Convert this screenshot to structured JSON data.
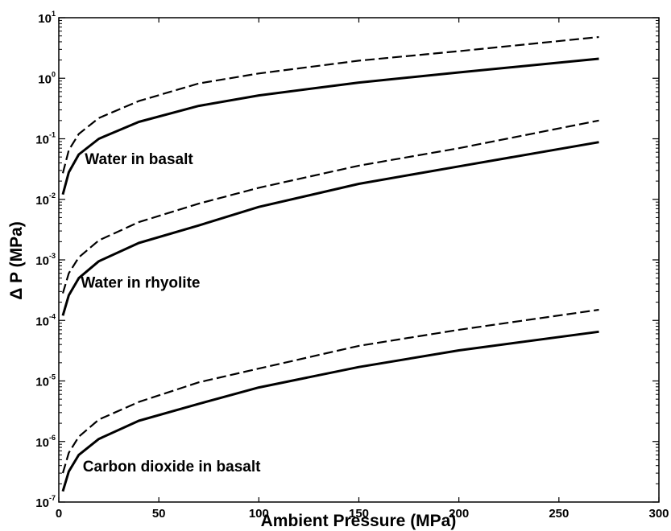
{
  "chart_data": {
    "type": "line",
    "xlabel": "Ambient Pressure  (MPa)",
    "ylabel": "Δ P (MPa)",
    "xlim": [
      0,
      300
    ],
    "ylim": [
      1e-07,
      10
    ],
    "yscale": "log",
    "grid": false,
    "x_ticks": [
      0,
      50,
      100,
      150,
      200,
      250,
      300
    ],
    "y_ticks": [
      {
        "value": 1e-07,
        "base": "10",
        "exp": "-7"
      },
      {
        "value": 1e-06,
        "base": "10",
        "exp": "-6"
      },
      {
        "value": 1e-05,
        "base": "10",
        "exp": "-5"
      },
      {
        "value": 0.0001,
        "base": "10",
        "exp": "-4"
      },
      {
        "value": 0.001,
        "base": "10",
        "exp": "-3"
      },
      {
        "value": 0.01,
        "base": "10",
        "exp": "-2"
      },
      {
        "value": 0.1,
        "base": "10",
        "exp": "-1"
      },
      {
        "value": 1,
        "base": "10",
        "exp": "0"
      },
      {
        "value": 10,
        "base": "10",
        "exp": "1"
      }
    ],
    "series": [
      {
        "style": "dashed",
        "x": [
          2,
          5,
          10,
          20,
          40,
          70,
          100,
          150,
          200,
          270
        ],
        "y": [
          0.027,
          0.065,
          0.12,
          0.22,
          0.42,
          0.82,
          1.2,
          1.95,
          2.8,
          4.8
        ]
      },
      {
        "style": "solid",
        "x": [
          2,
          5,
          10,
          20,
          40,
          70,
          100,
          150,
          200,
          270
        ],
        "y": [
          0.012,
          0.028,
          0.055,
          0.1,
          0.19,
          0.35,
          0.52,
          0.85,
          1.25,
          2.1
        ]
      },
      {
        "style": "dashed",
        "x": [
          2,
          5,
          10,
          20,
          40,
          70,
          100,
          150,
          200,
          270
        ],
        "y": [
          0.00028,
          0.0006,
          0.0011,
          0.0021,
          0.0042,
          0.0085,
          0.0155,
          0.036,
          0.07,
          0.2
        ]
      },
      {
        "style": "solid",
        "x": [
          2,
          5,
          10,
          20,
          40,
          70,
          100,
          150,
          200,
          270
        ],
        "y": [
          0.00012,
          0.00026,
          0.0005,
          0.00095,
          0.0019,
          0.0037,
          0.0075,
          0.018,
          0.035,
          0.088
        ]
      },
      {
        "style": "dashed",
        "x": [
          2,
          5,
          10,
          20,
          40,
          70,
          100,
          150,
          200,
          270
        ],
        "y": [
          3e-07,
          6.5e-07,
          1.2e-06,
          2.3e-06,
          4.5e-06,
          9.5e-06,
          1.6e-05,
          3.8e-05,
          7e-05,
          0.00015
        ]
      },
      {
        "style": "solid",
        "x": [
          2,
          5,
          10,
          20,
          40,
          70,
          100,
          150,
          200,
          270
        ],
        "y": [
          1.5e-07,
          3.2e-07,
          6e-07,
          1.1e-06,
          2.2e-06,
          4.2e-06,
          7.8e-06,
          1.7e-05,
          3.2e-05,
          6.5e-05
        ]
      }
    ],
    "annotations": [
      {
        "text": "Water in basalt",
        "x": 13,
        "y": 0.038
      },
      {
        "text": "Water in rhyolite",
        "x": 11,
        "y": 0.00035
      },
      {
        "text": "Carbon dioxide in basalt",
        "x": 12,
        "y": 3.2e-07
      }
    ]
  }
}
